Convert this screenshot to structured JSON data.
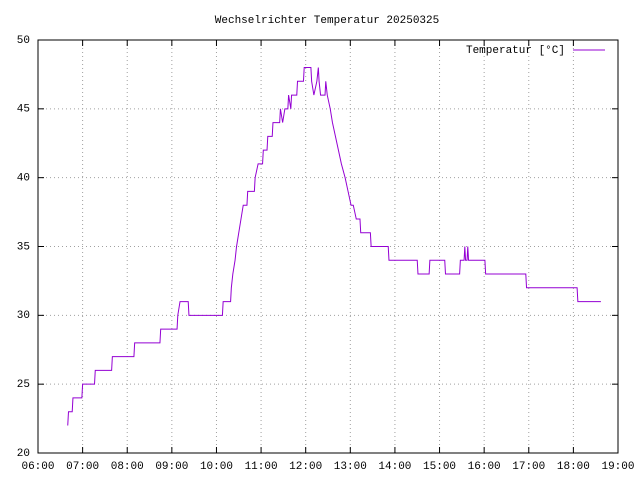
{
  "chart_data": {
    "type": "line",
    "title": "Wechselrichter Temperatur 20250325",
    "xlim": [
      "06:00",
      "19:00"
    ],
    "xticks": [
      "06:00",
      "07:00",
      "08:00",
      "09:00",
      "10:00",
      "11:00",
      "12:00",
      "13:00",
      "14:00",
      "15:00",
      "16:00",
      "17:00",
      "18:00",
      "19:00"
    ],
    "ylim": [
      20,
      50
    ],
    "yticks": [
      20,
      25,
      30,
      35,
      40,
      45,
      50
    ],
    "grid": true,
    "legend": "top-right",
    "x": [
      "06:40",
      "06:41",
      "06:46",
      "06:47",
      "06:59",
      "07:00",
      "07:16",
      "07:17",
      "07:39",
      "07:40",
      "08:09",
      "08:10",
      "08:44",
      "08:45",
      "09:07",
      "09:08",
      "09:11",
      "09:22",
      "09:23",
      "10:08",
      "10:09",
      "10:19",
      "10:20",
      "10:22",
      "10:25",
      "10:27",
      "10:30",
      "10:33",
      "10:36",
      "10:41",
      "10:42",
      "10:51",
      "10:52",
      "10:56",
      "11:02",
      "11:03",
      "11:08",
      "11:09",
      "11:15",
      "11:16",
      "11:25",
      "11:26",
      "11:29",
      "11:32",
      "11:36",
      "11:37",
      "11:40",
      "11:41",
      "11:48",
      "11:49",
      "11:57",
      "11:58",
      "12:07",
      "12:08",
      "12:11",
      "12:15",
      "12:17",
      "12:18",
      "12:20",
      "12:26",
      "12:27",
      "12:29",
      "12:33",
      "12:36",
      "12:40",
      "12:44",
      "12:48",
      "12:53",
      "12:57",
      "13:01",
      "13:04",
      "13:08",
      "13:13",
      "13:14",
      "13:27",
      "13:28",
      "13:51",
      "13:52",
      "14:30",
      "14:31",
      "14:46",
      "14:47",
      "15:07",
      "15:08",
      "15:27",
      "15:28",
      "15:33",
      "15:34",
      "15:35",
      "15:37",
      "15:38",
      "15:39",
      "16:01",
      "16:02",
      "16:56",
      "16:57",
      "18:05",
      "18:06",
      "18:37"
    ],
    "series": [
      {
        "name": "Temperatur [°C]",
        "color": "#9400d3",
        "values": [
          22,
          23,
          23,
          24,
          24,
          25,
          25,
          26,
          26,
          27,
          27,
          28,
          28,
          29,
          29,
          30,
          31,
          31,
          30,
          30,
          31,
          31,
          32,
          33,
          34,
          35,
          36,
          37,
          38,
          38,
          39,
          39,
          40,
          41,
          41,
          42,
          42,
          43,
          43,
          44,
          44,
          45,
          44,
          45,
          45,
          46,
          45,
          46,
          46,
          47,
          47,
          48,
          48,
          47,
          46,
          47,
          48,
          47,
          46,
          46,
          47,
          46,
          45,
          44,
          43,
          42,
          41,
          40,
          39,
          38,
          38,
          37,
          37,
          36,
          36,
          35,
          35,
          34,
          34,
          33,
          33,
          34,
          34,
          33,
          33,
          34,
          34,
          35,
          34,
          34,
          35,
          34,
          34,
          33,
          33,
          32,
          32,
          31,
          31
        ]
      }
    ]
  }
}
